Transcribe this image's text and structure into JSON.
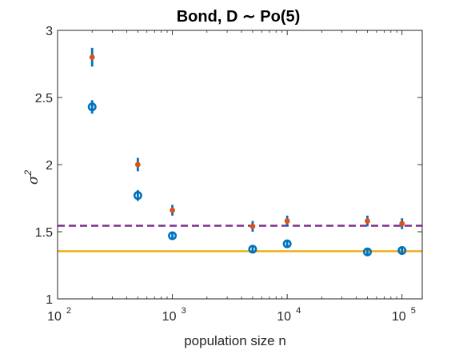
{
  "chart_data": {
    "type": "scatter",
    "title": "Bond, D ∼ Po(5)",
    "xlabel": "population size n",
    "ylabel": "σ²",
    "x_scale": "log",
    "xlim": [
      100,
      150000
    ],
    "ylim": [
      1,
      3
    ],
    "x_ticks": [
      {
        "base": "10",
        "exp": "2",
        "value": 100
      },
      {
        "base": "10",
        "exp": "3",
        "value": 1000
      },
      {
        "base": "10",
        "exp": "4",
        "value": 10000
      },
      {
        "base": "10",
        "exp": "5",
        "value": 100000
      }
    ],
    "y_ticks": [
      "1",
      "1.5",
      "2",
      "2.5",
      "3"
    ],
    "grid": false,
    "series": [
      {
        "marker": "filled-circle",
        "color": "#d95319",
        "errorbar_color": "#0072bd",
        "x": [
          200,
          500,
          1000,
          5000,
          10000,
          50000,
          100000
        ],
        "y": [
          2.8,
          2.0,
          1.66,
          1.54,
          1.58,
          1.58,
          1.56
        ],
        "err": [
          0.07,
          0.05,
          0.04,
          0.04,
          0.04,
          0.04,
          0.04
        ]
      },
      {
        "marker": "open-circle",
        "color": "#0072bd",
        "errorbar_color": "#0072bd",
        "x": [
          200,
          500,
          1000,
          5000,
          10000,
          50000,
          100000
        ],
        "y": [
          2.43,
          1.77,
          1.47,
          1.37,
          1.41,
          1.35,
          1.36
        ],
        "err": [
          0.05,
          0.04,
          0.03,
          0.03,
          0.03,
          0.03,
          0.03
        ]
      }
    ],
    "reference_lines": [
      {
        "y": 1.545,
        "style": "dashed",
        "color": "#7e2f8e"
      },
      {
        "y": 1.355,
        "style": "solid",
        "color": "#edb120"
      }
    ]
  }
}
